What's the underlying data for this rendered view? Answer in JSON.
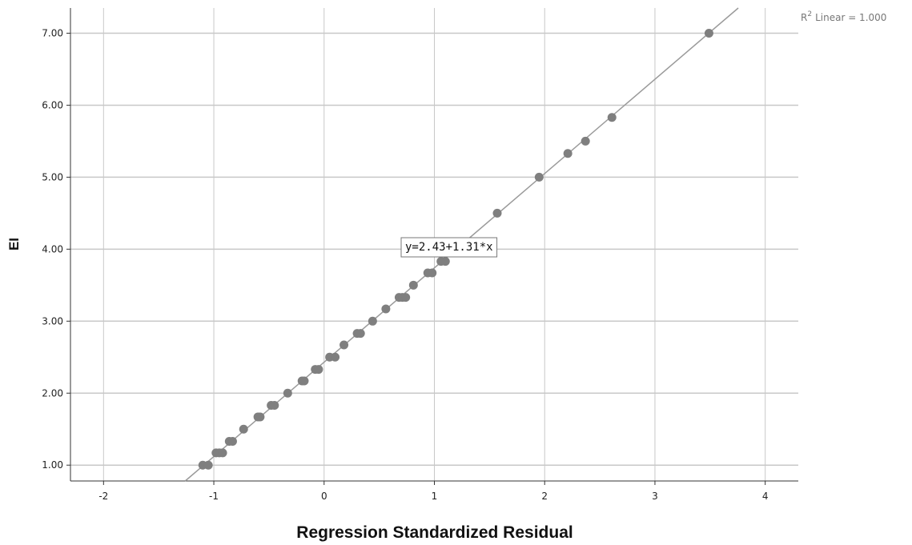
{
  "chart_data": {
    "type": "scatter",
    "title": "",
    "xlabel": "Regression Standardized Residual",
    "ylabel": "EI",
    "xlim": [
      -2.3,
      4.3
    ],
    "ylim": [
      0.78,
      7.35
    ],
    "x_ticks": [
      -2,
      -1,
      0,
      1,
      2,
      3,
      4
    ],
    "x_tick_labels": [
      "-2",
      "-1",
      "0",
      "1",
      "2",
      "3",
      "4"
    ],
    "y_ticks": [
      1,
      2,
      3,
      4,
      5,
      6,
      7
    ],
    "y_tick_labels": [
      "1.00",
      "2.00",
      "3.00",
      "4.00",
      "5.00",
      "6.00",
      "7.00"
    ],
    "grid": true,
    "point_color": "#7f7f7f",
    "line_color": "#9a9a9a",
    "fit_line": {
      "intercept": 2.43,
      "slope": 1.31,
      "label": "y=2.43+1.31*x",
      "r_squared_label": "Linear = 1.000",
      "r_squared_prefix": "R",
      "r_squared_sup": "2"
    },
    "points": [
      {
        "x": -1.1,
        "y": 1.0
      },
      {
        "x": -1.05,
        "y": 1.0
      },
      {
        "x": -0.98,
        "y": 1.17
      },
      {
        "x": -0.95,
        "y": 1.17
      },
      {
        "x": -0.92,
        "y": 1.17
      },
      {
        "x": -0.86,
        "y": 1.33
      },
      {
        "x": -0.83,
        "y": 1.33
      },
      {
        "x": -0.73,
        "y": 1.5
      },
      {
        "x": -0.6,
        "y": 1.67
      },
      {
        "x": -0.58,
        "y": 1.67
      },
      {
        "x": -0.48,
        "y": 1.83
      },
      {
        "x": -0.45,
        "y": 1.83
      },
      {
        "x": -0.33,
        "y": 2.0
      },
      {
        "x": -0.2,
        "y": 2.17
      },
      {
        "x": -0.18,
        "y": 2.17
      },
      {
        "x": -0.08,
        "y": 2.33
      },
      {
        "x": -0.05,
        "y": 2.33
      },
      {
        "x": 0.05,
        "y": 2.5
      },
      {
        "x": 0.1,
        "y": 2.5
      },
      {
        "x": 0.18,
        "y": 2.67
      },
      {
        "x": 0.3,
        "y": 2.83
      },
      {
        "x": 0.33,
        "y": 2.83
      },
      {
        "x": 0.44,
        "y": 3.0
      },
      {
        "x": 0.56,
        "y": 3.17
      },
      {
        "x": 0.68,
        "y": 3.33
      },
      {
        "x": 0.71,
        "y": 3.33
      },
      {
        "x": 0.74,
        "y": 3.33
      },
      {
        "x": 0.81,
        "y": 3.5
      },
      {
        "x": 0.94,
        "y": 3.67
      },
      {
        "x": 0.98,
        "y": 3.67
      },
      {
        "x": 1.06,
        "y": 3.83
      },
      {
        "x": 1.1,
        "y": 3.83
      },
      {
        "x": 1.57,
        "y": 4.5
      },
      {
        "x": 1.95,
        "y": 5.0
      },
      {
        "x": 2.21,
        "y": 5.33
      },
      {
        "x": 2.37,
        "y": 5.5
      },
      {
        "x": 2.61,
        "y": 5.83
      },
      {
        "x": 3.49,
        "y": 7.0
      }
    ]
  }
}
